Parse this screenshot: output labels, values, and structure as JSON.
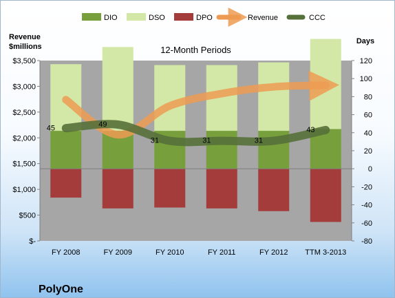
{
  "company": "PolyOne",
  "chart_data": {
    "type": "bar+line",
    "title": "12-Month Periods",
    "ylabel_left": "Revenue\n$millions",
    "ylabel_right": "Days",
    "categories": [
      "FY 2008",
      "FY 2009",
      "FY 2010",
      "FY 2011",
      "FY 2012",
      "TTM 3-2013"
    ],
    "left_axis": {
      "min": 0,
      "max": 3500,
      "step": 500,
      "tick_labels": [
        "$-",
        "$500",
        "$1,000",
        "$1,500",
        "$2,000",
        "$2,500",
        "$3,000",
        "$3,500"
      ]
    },
    "right_axis": {
      "min": -80,
      "max": 120,
      "step": 20,
      "tick_labels": [
        "-80",
        "-60",
        "-40",
        "-20",
        "0",
        "20",
        "40",
        "60",
        "80",
        "100",
        "120"
      ]
    },
    "legend": {
      "position": "top",
      "items": [
        {
          "name": "DIO",
          "type": "bar",
          "color": "#77a03c"
        },
        {
          "name": "DSO",
          "type": "bar",
          "color": "#d3e8a6"
        },
        {
          "name": "DPO",
          "type": "bar",
          "color": "#a33c3a"
        },
        {
          "name": "Revenue",
          "type": "arrow",
          "color": "#ed9b52"
        },
        {
          "name": "CCC",
          "type": "line",
          "color": "#56703a"
        }
      ]
    },
    "series": [
      {
        "name": "DIO",
        "axis": "right",
        "values": [
          42,
          42,
          42,
          42,
          42,
          44
        ]
      },
      {
        "name": "DSO",
        "axis": "right",
        "values": [
          74,
          93,
          73,
          73,
          76,
          100
        ]
      },
      {
        "name": "DPO",
        "axis": "right",
        "values": [
          -32,
          -44,
          -43,
          -44,
          -47,
          -59
        ]
      },
      {
        "name": "Revenue",
        "axis": "left",
        "values": [
          2740,
          2060,
          2620,
          2860,
          2990,
          3020
        ]
      },
      {
        "name": "CCC",
        "axis": "right",
        "values": [
          45,
          49,
          31,
          31,
          31,
          43
        ],
        "data_labels": [
          "45",
          "49",
          "31",
          "31",
          "31",
          "43"
        ]
      }
    ],
    "grid": false,
    "plot_background": "#a6a6a6"
  }
}
